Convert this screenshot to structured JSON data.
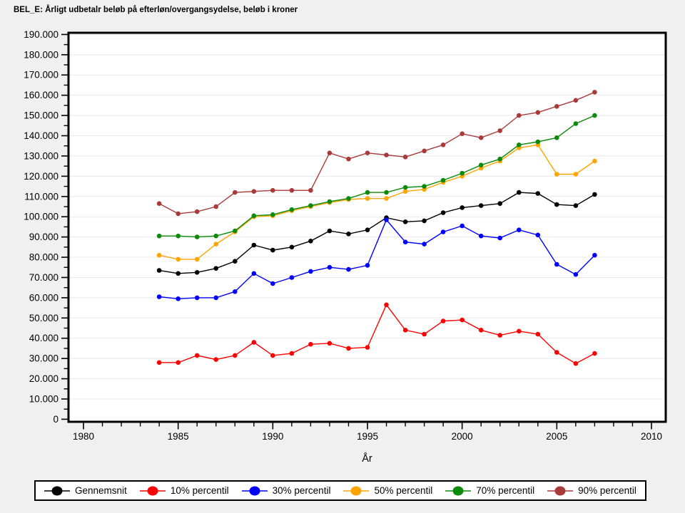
{
  "title": "BEL_E: Årligt udbetalr beløb på efterløn/overgangsydelse, beløb i kroner",
  "axes": {
    "x_label": "År",
    "x_major_ticks": [
      1980,
      1985,
      1990,
      1995,
      2000,
      2005,
      2010
    ],
    "x_minor_tick_step_years": 1,
    "y_ticks": [
      {
        "value": 0,
        "label": "0"
      },
      {
        "value": 10000,
        "label": "10.000"
      },
      {
        "value": 20000,
        "label": "20.000"
      },
      {
        "value": 30000,
        "label": "30.000"
      },
      {
        "value": 40000,
        "label": "40.000"
      },
      {
        "value": 50000,
        "label": "50.000"
      },
      {
        "value": 60000,
        "label": "60.000"
      },
      {
        "value": 70000,
        "label": "70.000"
      },
      {
        "value": 80000,
        "label": "80.000"
      },
      {
        "value": 90000,
        "label": "90.000"
      },
      {
        "value": 100000,
        "label": "100.000"
      },
      {
        "value": 110000,
        "label": "110.000"
      },
      {
        "value": 120000,
        "label": "120.000"
      },
      {
        "value": 130000,
        "label": "130.000"
      },
      {
        "value": 140000,
        "label": "140.000"
      },
      {
        "value": 150000,
        "label": "150.000"
      },
      {
        "value": 160000,
        "label": "160.000"
      },
      {
        "value": 170000,
        "label": "170.000"
      },
      {
        "value": 180000,
        "label": "180.000"
      },
      {
        "value": 190000,
        "label": "190.000"
      }
    ],
    "y_minor_tick_step": 5000
  },
  "colors": {
    "background": "#f0f0f0",
    "plot_background": "#ffffff",
    "frame": "#000000",
    "gridline": "#e8e8e8"
  },
  "chart_data": {
    "type": "line",
    "title": "BEL_E: Årligt udbetalr beløb på efterløn/overgangsydelse, beløb i kroner",
    "xlabel": "År",
    "ylabel": "",
    "xlim": [
      1979.2,
      2010.8
    ],
    "ylim": [
      0,
      190000
    ],
    "grid": true,
    "legend_position": "bottom",
    "x": [
      1984,
      1985,
      1986,
      1987,
      1988,
      1989,
      1990,
      1991,
      1992,
      1993,
      1994,
      1995,
      1996,
      1997,
      1998,
      1999,
      2000,
      2001,
      2002,
      2003,
      2004,
      2005,
      2006,
      2007
    ],
    "series": [
      {
        "name": "Gennemsnit",
        "color": "#000000",
        "values": [
          73500,
          72000,
          72500,
          74500,
          78000,
          86000,
          83500,
          85000,
          88000,
          93000,
          91500,
          93500,
          99500,
          97500,
          98000,
          102000,
          104500,
          105500,
          106500,
          112000,
          111500,
          106000,
          105500,
          111000
        ]
      },
      {
        "name": "10% percentil",
        "color": "#ff0000",
        "values": [
          28000,
          28000,
          31500,
          29500,
          31500,
          38000,
          31500,
          32500,
          37000,
          37500,
          35000,
          35500,
          56500,
          44000,
          42000,
          48500,
          49000,
          44000,
          41500,
          43500,
          42000,
          33000,
          27500,
          32500
        ]
      },
      {
        "name": "30% percentil",
        "color": "#0000ff",
        "values": [
          60500,
          59500,
          60000,
          60000,
          63000,
          72000,
          67000,
          70000,
          73000,
          75000,
          74000,
          76000,
          98500,
          87500,
          86500,
          92500,
          95500,
          90500,
          89500,
          93500,
          91000,
          76500,
          71500,
          81000
        ]
      },
      {
        "name": "50% percentil",
        "color": "#ffa500",
        "values": [
          81000,
          79000,
          79000,
          86500,
          92500,
          100000,
          100500,
          103000,
          105000,
          107000,
          108500,
          109000,
          109000,
          112500,
          113500,
          117000,
          120000,
          124000,
          127500,
          134000,
          135500,
          121000,
          121000,
          127500
        ]
      },
      {
        "name": "70% percentil",
        "color": "#0b8a0b",
        "values": [
          90500,
          90500,
          90000,
          90500,
          93000,
          100500,
          101000,
          103500,
          105500,
          107500,
          109000,
          112000,
          112000,
          114500,
          115000,
          118000,
          121500,
          125500,
          128500,
          135500,
          137000,
          139000,
          146000,
          150000
        ]
      },
      {
        "name": "90% percentil",
        "color": "#a93a3a",
        "values": [
          106500,
          101500,
          102500,
          105000,
          112000,
          112500,
          113000,
          113000,
          113000,
          131500,
          128500,
          131500,
          130500,
          129500,
          132500,
          135500,
          141000,
          139000,
          142500,
          150000,
          151500,
          154500,
          157500,
          161500
        ]
      }
    ]
  },
  "legend": {
    "items": [
      {
        "label": "Gennemsnit",
        "color": "#000000"
      },
      {
        "label": "10% percentil",
        "color": "#ff0000"
      },
      {
        "label": "30% percentil",
        "color": "#0000ff"
      },
      {
        "label": "50% percentil",
        "color": "#ffa500"
      },
      {
        "label": "70% percentil",
        "color": "#0b8a0b"
      },
      {
        "label": "90% percentil",
        "color": "#a93a3a"
      }
    ]
  }
}
